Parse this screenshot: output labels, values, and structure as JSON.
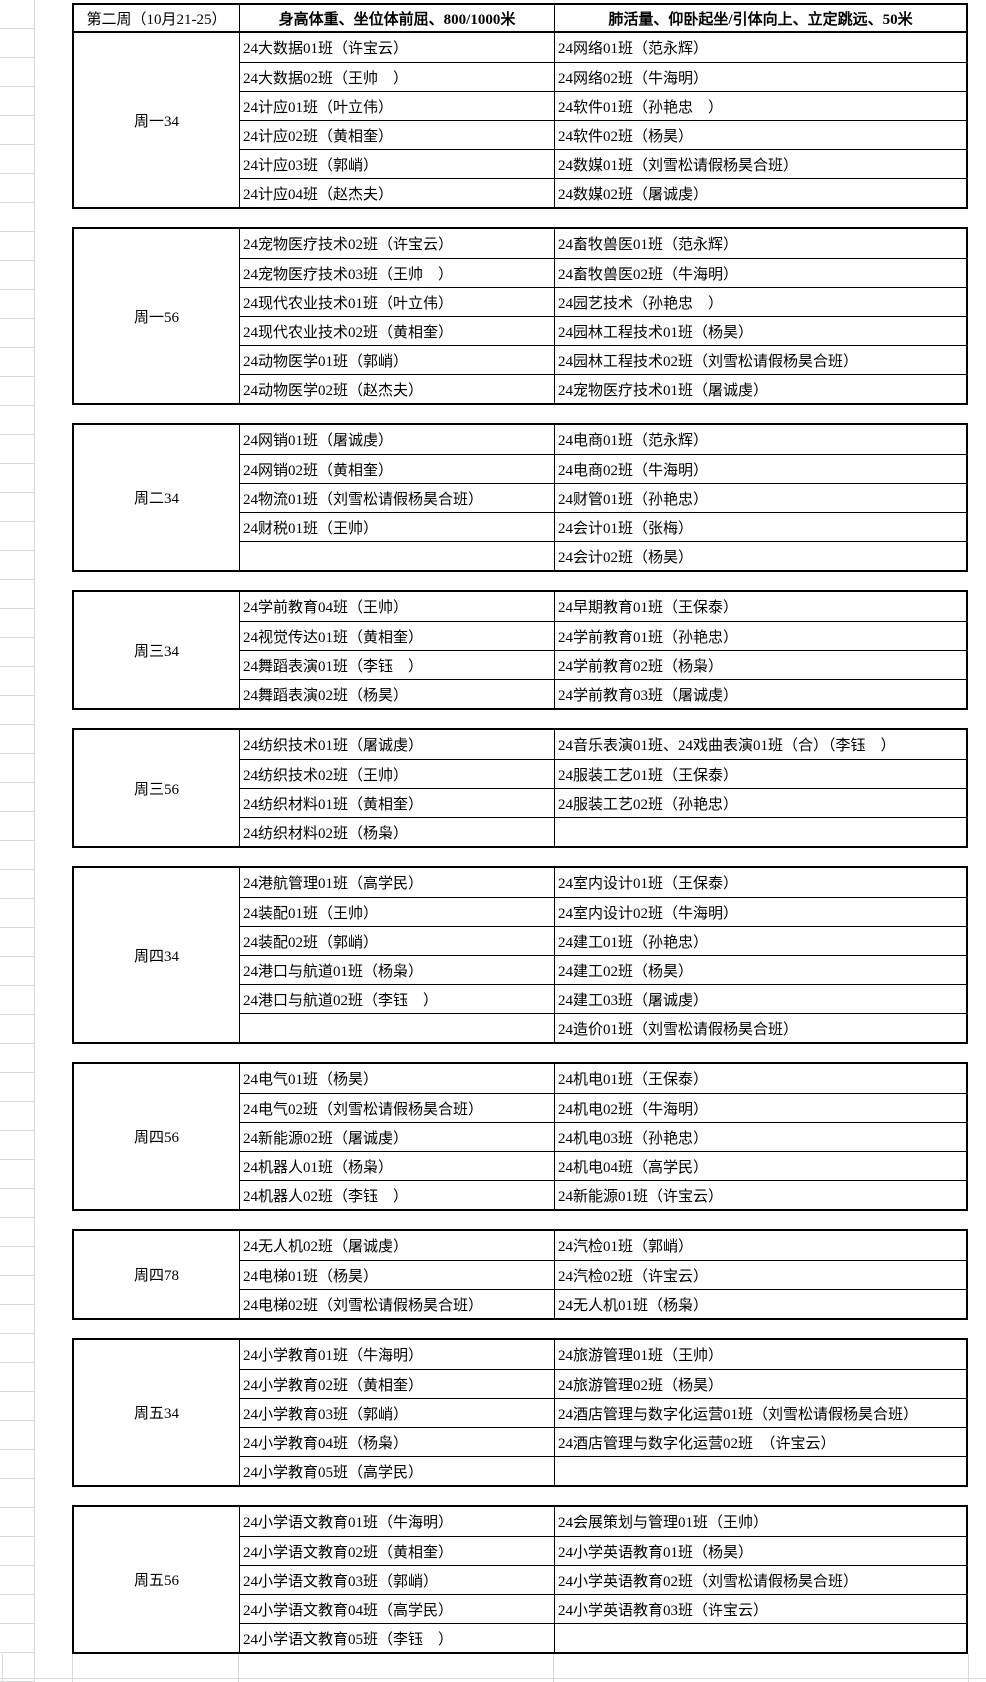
{
  "colors": {
    "table_border": "#000000",
    "gridline": "#d9d9d9",
    "background": "#ffffff",
    "text": "#000000"
  },
  "header": {
    "week": "第二周（10月21-25）",
    "group1": "身高体重、坐位体前屈、800/1000米",
    "group2": "肺活量、仰卧起坐/引体向上、立定跳远、50米"
  },
  "sections": [
    {
      "label": "周一34",
      "rows": [
        [
          "24大数据01班（许宝云）",
          "24网络01班（范永辉）"
        ],
        [
          "24大数据02班（王帅　）",
          "24网络02班（牛海明）"
        ],
        [
          "24计应01班（叶立伟）",
          "24软件01班（孙艳忠　）"
        ],
        [
          "24计应02班（黄相奎）",
          "24软件02班（杨昊）"
        ],
        [
          "24计应03班（郭峭）",
          "24数媒01班（刘雪松请假杨昊合班）"
        ],
        [
          "24计应04班（赵杰夫）",
          "24数媒02班（屠诚虔）"
        ]
      ]
    },
    {
      "label": "周一56",
      "rows": [
        [
          "24宠物医疗技术02班（许宝云）",
          "24畜牧兽医01班（范永辉）"
        ],
        [
          "24宠物医疗技术03班（王帅　）",
          "24畜牧兽医02班（牛海明）"
        ],
        [
          "24现代农业技术01班（叶立伟）",
          "24园艺技术（孙艳忠　）"
        ],
        [
          "24现代农业技术02班（黄相奎）",
          "24园林工程技术01班（杨昊）"
        ],
        [
          "24动物医学01班（郭峭）",
          "24园林工程技术02班（刘雪松请假杨昊合班）"
        ],
        [
          "24动物医学02班（赵杰夫）",
          "24宠物医疗技术01班（屠诚虔）"
        ]
      ]
    },
    {
      "label": "周二34",
      "rows": [
        [
          "24网销01班（屠诚虔）",
          "24电商01班（范永辉）"
        ],
        [
          "24网销02班（黄相奎）",
          "24电商02班（牛海明）"
        ],
        [
          "24物流01班（刘雪松请假杨昊合班）",
          "24财管01班（孙艳忠）"
        ],
        [
          "24财税01班（王帅）",
          "24会计01班（张梅）"
        ],
        [
          "",
          "24会计02班（杨昊）"
        ]
      ]
    },
    {
      "label": "周三34",
      "rows": [
        [
          "24学前教育04班（王帅）",
          "24早期教育01班（王保泰）"
        ],
        [
          "24视觉传达01班（黄相奎）",
          "24学前教育01班（孙艳忠）"
        ],
        [
          "24舞蹈表演01班（李钰　）",
          "24学前教育02班（杨枭）"
        ],
        [
          "24舞蹈表演02班（杨昊）",
          "24学前教育03班（屠诚虔）"
        ]
      ]
    },
    {
      "label": "周三56",
      "rows": [
        [
          "24纺织技术01班（屠诚虔）",
          "24音乐表演01班、24戏曲表演01班（合）（李钰　）"
        ],
        [
          "24纺织技术02班（王帅）",
          "24服装工艺01班（王保泰）"
        ],
        [
          "24纺织材料01班（黄相奎）",
          "24服装工艺02班（孙艳忠）"
        ],
        [
          "24纺织材料02班（杨枭）",
          ""
        ]
      ]
    },
    {
      "label": "周四34",
      "rows": [
        [
          "24港航管理01班（高学民）",
          "24室内设计01班（王保泰）"
        ],
        [
          "24装配01班（王帅）",
          "24室内设计02班（牛海明）"
        ],
        [
          "24装配02班（郭峭）",
          "24建工01班（孙艳忠）"
        ],
        [
          "24港口与航道01班（杨枭）",
          "24建工02班（杨昊）"
        ],
        [
          "24港口与航道02班（李钰　）",
          "24建工03班（屠诚虔）"
        ],
        [
          "",
          "24造价01班（刘雪松请假杨昊合班）"
        ]
      ]
    },
    {
      "label": "周四56",
      "rows": [
        [
          "24电气01班（杨昊）",
          "24机电01班（王保泰）"
        ],
        [
          "24电气02班（刘雪松请假杨昊合班）",
          "24机电02班（牛海明）"
        ],
        [
          "24新能源02班（屠诚虔）",
          "24机电03班（孙艳忠）"
        ],
        [
          "24机器人01班（杨枭）",
          "24机电04班（高学民）"
        ],
        [
          "24机器人02班（李钰　）",
          "24新能源01班（许宝云）"
        ]
      ]
    },
    {
      "label": "周四78",
      "rows": [
        [
          "24无人机02班（屠诚虔）",
          "24汽检01班（郭峭）"
        ],
        [
          "24电梯01班（杨昊）",
          "24汽检02班（许宝云）"
        ],
        [
          "24电梯02班（刘雪松请假杨昊合班）",
          "24无人机01班（杨枭）"
        ]
      ]
    },
    {
      "label": "周五34",
      "rows": [
        [
          "24小学教育01班（牛海明）",
          "24旅游管理01班（王帅）"
        ],
        [
          "24小学教育02班（黄相奎）",
          "24旅游管理02班（杨昊）"
        ],
        [
          "24小学教育03班（郭峭）",
          "24酒店管理与数字化运营01班（刘雪松请假杨昊合班）"
        ],
        [
          "24小学教育04班（杨枭）",
          "24酒店管理与数字化运营02班　（许宝云）"
        ],
        [
          "24小学教育05班（高学民）",
          ""
        ]
      ]
    },
    {
      "label": "周五56",
      "rows": [
        [
          "24小学语文教育01班（牛海明）",
          "24会展策划与管理01班（王帅）"
        ],
        [
          "24小学语文教育02班（黄相奎）",
          "24小学英语教育01班（杨昊）"
        ],
        [
          "24小学语文教育03班（郭峭）",
          "24小学英语教育02班（刘雪松请假杨昊合班）"
        ],
        [
          "24小学语文教育04班（高学民）",
          "24小学英语教育03班（许宝云）"
        ],
        [
          "24小学语文教育05班（李钰　）",
          ""
        ]
      ]
    }
  ]
}
